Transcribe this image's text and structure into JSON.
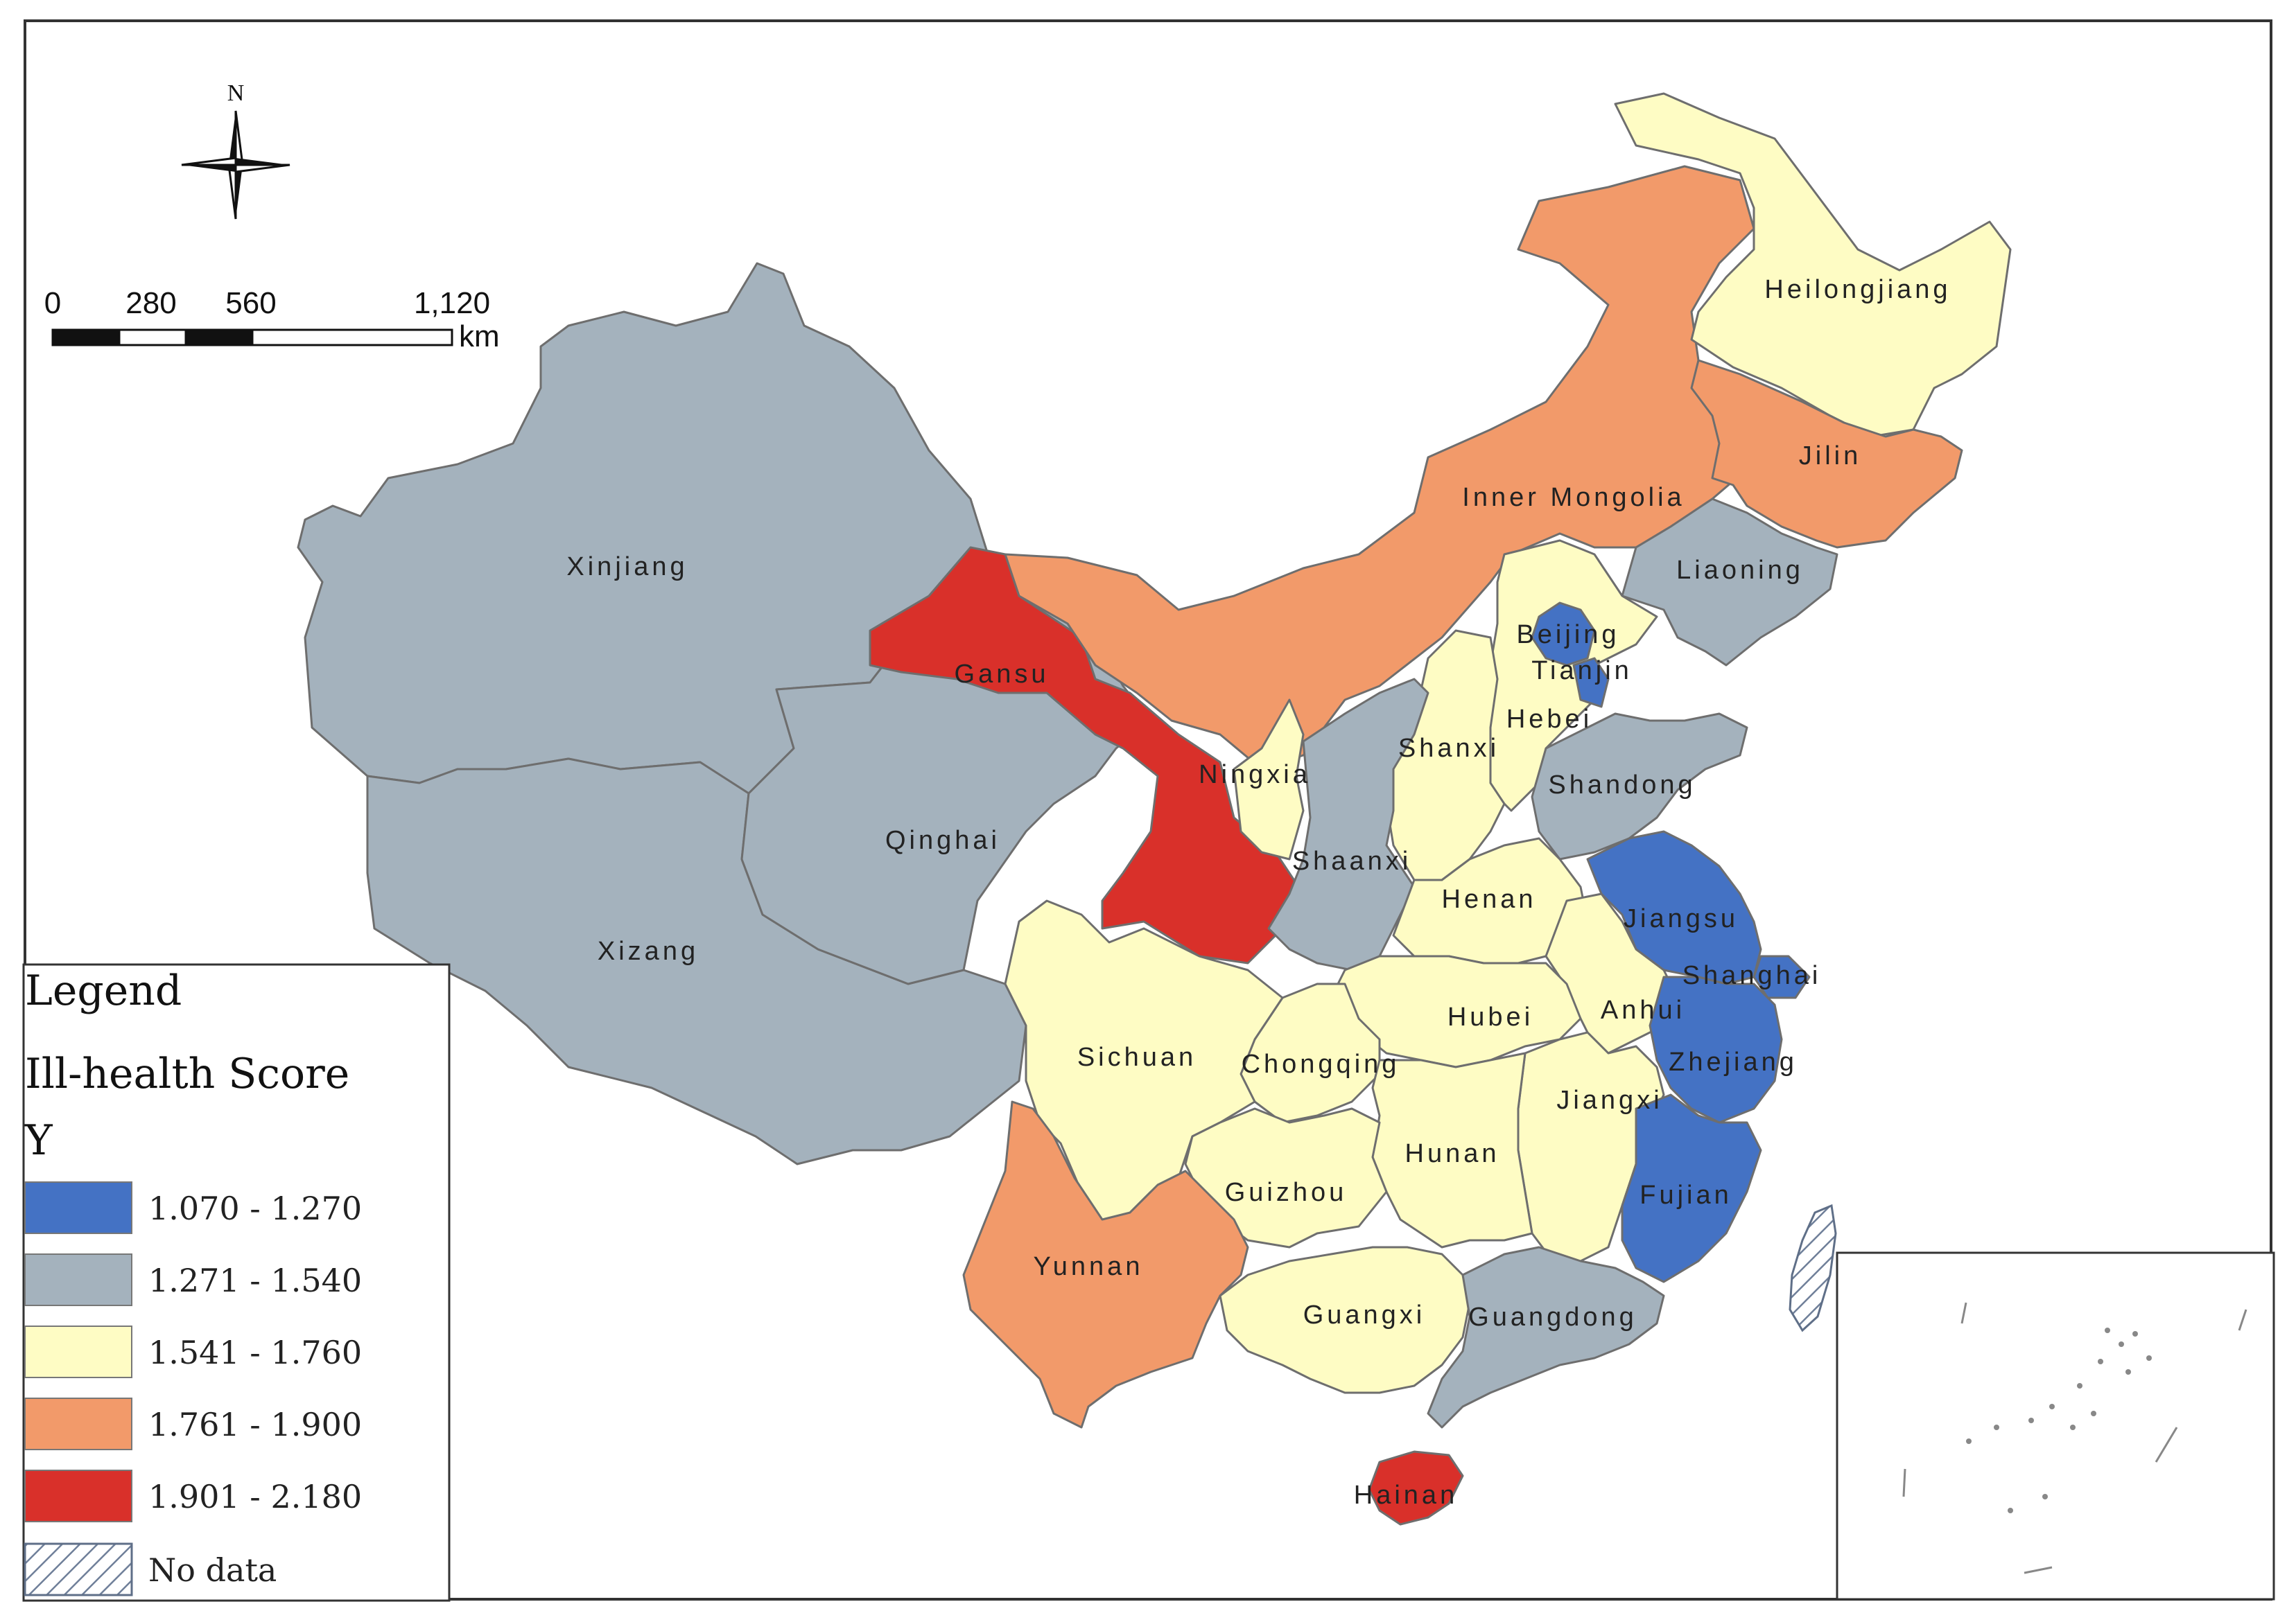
{
  "map": {
    "north_label": "N",
    "scale": {
      "ticks": [
        "0",
        "280",
        "560",
        "1,120"
      ],
      "unit": "km"
    },
    "legend": {
      "heading": "Legend",
      "title": "Ill-health Score",
      "field": "Y",
      "classes": [
        {
          "label": "1.070 - 1.270",
          "color": "#4472c4"
        },
        {
          "label": "1.271 - 1.540",
          "color": "#a4b2bd"
        },
        {
          "label": "1.541 - 1.760",
          "color": "#fefcc4"
        },
        {
          "label": "1.761 - 1.900",
          "color": "#f29a6a"
        },
        {
          "label": "1.901 - 2.180",
          "color": "#d9302a"
        }
      ],
      "no_data_label": "No data"
    },
    "provinces": [
      {
        "name": "Heilongjiang",
        "class": 2
      },
      {
        "name": "Jilin",
        "class": 3
      },
      {
        "name": "Liaoning",
        "class": 1
      },
      {
        "name": "Inner Mongolia",
        "class": 3
      },
      {
        "name": "Xinjiang",
        "class": 1
      },
      {
        "name": "Gansu",
        "class": 4
      },
      {
        "name": "Beijing",
        "class": 0
      },
      {
        "name": "Tianjin",
        "class": 0
      },
      {
        "name": "Hebei",
        "class": 2
      },
      {
        "name": "Shanxi",
        "class": 2
      },
      {
        "name": "Shandong",
        "class": 1
      },
      {
        "name": "Ningxia",
        "class": 2
      },
      {
        "name": "Qinghai",
        "class": 1
      },
      {
        "name": "Shaanxi",
        "class": 1
      },
      {
        "name": "Henan",
        "class": 2
      },
      {
        "name": "Jiangsu",
        "class": 0
      },
      {
        "name": "Xizang",
        "class": 1
      },
      {
        "name": "Shanghai",
        "class": 0
      },
      {
        "name": "Anhui",
        "class": 2
      },
      {
        "name": "Hubei",
        "class": 2
      },
      {
        "name": "Zhejiang",
        "class": 0
      },
      {
        "name": "Sichuan",
        "class": 2
      },
      {
        "name": "Chongqing",
        "class": 2
      },
      {
        "name": "Jiangxi",
        "class": 2
      },
      {
        "name": "Hunan",
        "class": 2
      },
      {
        "name": "Guizhou",
        "class": 2
      },
      {
        "name": "Fujian",
        "class": 0
      },
      {
        "name": "Yunnan",
        "class": 3
      },
      {
        "name": "Guangxi",
        "class": 2
      },
      {
        "name": "Guangdong",
        "class": 1
      },
      {
        "name": "Hainan",
        "class": 4
      }
    ]
  }
}
